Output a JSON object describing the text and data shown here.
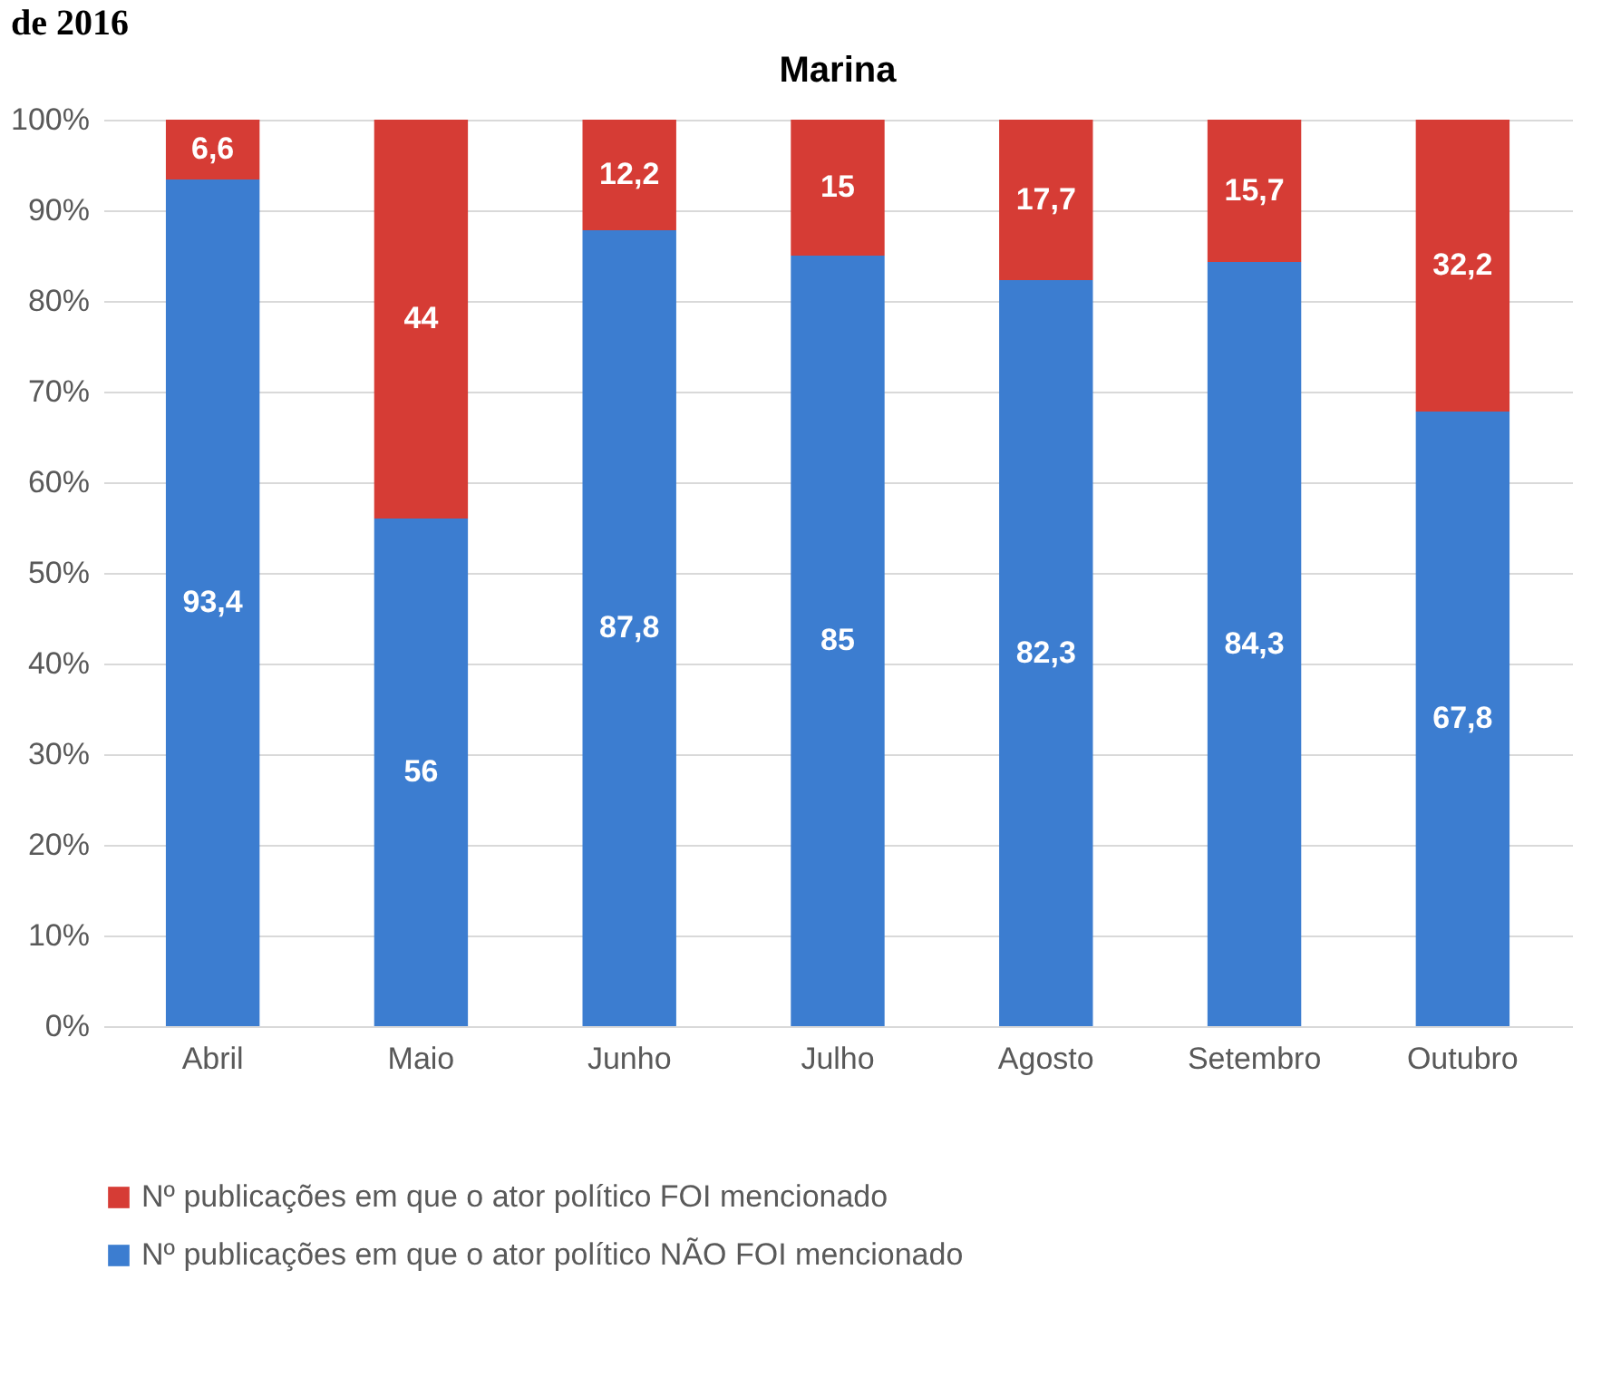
{
  "chart_data": {
    "type": "bar",
    "title": "Marina",
    "annotations": [
      "de 2016"
    ],
    "categories": [
      "Abril",
      "Maio",
      "Junho",
      "Julho",
      "Agosto",
      "Setembro",
      "Outubro"
    ],
    "stacked": true,
    "series": [
      {
        "name": "Nº publicações em que o ator político NÃO FOI mencionado",
        "color": "#3c7dd0",
        "values": [
          93.4,
          56,
          87.8,
          85,
          82.3,
          84.3,
          67.8
        ],
        "value_labels": [
          "93,4",
          "56",
          "87,8",
          "85",
          "82,3",
          "84,3",
          "67,8"
        ]
      },
      {
        "name": "Nº publicações em que o ator político FOI mencionado",
        "color": "#d63c35",
        "values": [
          6.6,
          44,
          12.2,
          15,
          17.7,
          15.7,
          32.2
        ],
        "value_labels": [
          "6,6",
          "44",
          "12,2",
          "15",
          "17,7",
          "15,7",
          "32,2"
        ]
      }
    ],
    "ylim": [
      0,
      100
    ],
    "yticks": [
      {
        "value": 0,
        "label": "0%"
      },
      {
        "value": 10,
        "label": "10%"
      },
      {
        "value": 20,
        "label": "20%"
      },
      {
        "value": 30,
        "label": "30%"
      },
      {
        "value": 40,
        "label": "40%"
      },
      {
        "value": 50,
        "label": "50%"
      },
      {
        "value": 60,
        "label": "60%"
      },
      {
        "value": 70,
        "label": "70%"
      },
      {
        "value": 80,
        "label": "80%"
      },
      {
        "value": 90,
        "label": "90%"
      },
      {
        "value": 100,
        "label": "100%"
      }
    ],
    "grid": "y",
    "legend": "bottom"
  }
}
